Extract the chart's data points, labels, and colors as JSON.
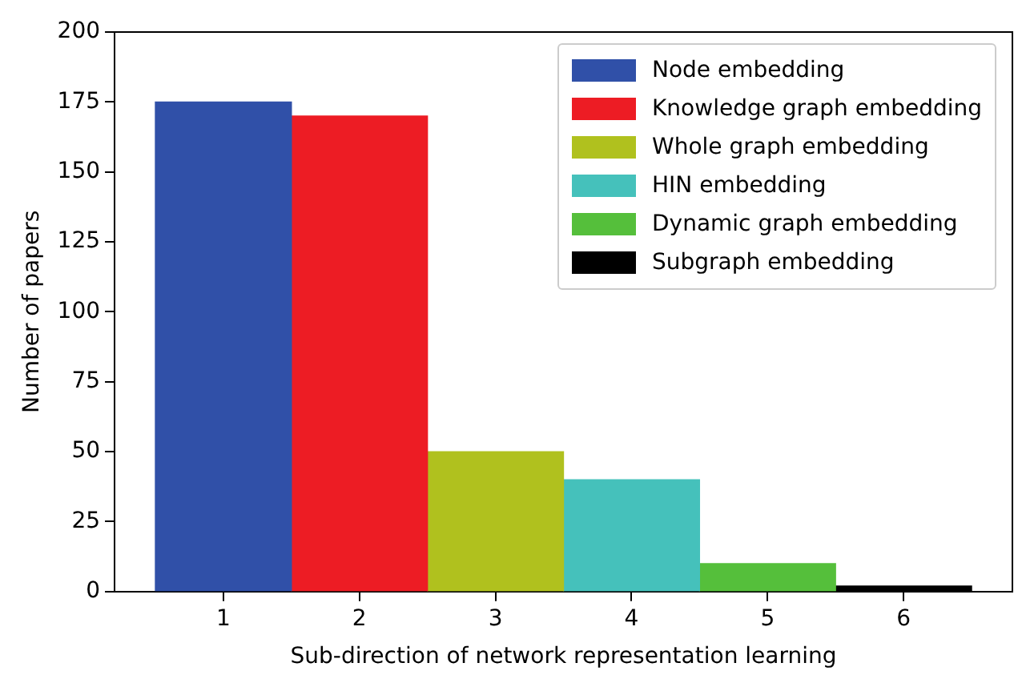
{
  "chart_data": {
    "type": "bar",
    "xlabel": "Sub-direction of network representation learning",
    "ylabel": "Number of papers",
    "xlim": [
      0.2,
      6.8
    ],
    "xticks": [
      1,
      2,
      3,
      4,
      5,
      6
    ],
    "ylim": [
      0,
      200
    ],
    "yticks": [
      0,
      25,
      50,
      75,
      100,
      125,
      150,
      175,
      200
    ],
    "grid": false,
    "legend": "top right",
    "series": [
      {
        "name": "Node embedding",
        "color": "#3050a8",
        "x": [
          1
        ],
        "values": [
          175
        ]
      },
      {
        "name": "Knowledge graph embedding",
        "color": "#ed1c24",
        "x": [
          2
        ],
        "values": [
          170
        ]
      },
      {
        "name": "Whole graph embedding",
        "color": "#b0c11e",
        "x": [
          3
        ],
        "values": [
          50
        ]
      },
      {
        "name": "HIN embedding",
        "color": "#45c1bb",
        "x": [
          4
        ],
        "values": [
          40
        ]
      },
      {
        "name": "Dynamic graph embedding",
        "color": "#55bf3b",
        "x": [
          5
        ],
        "values": [
          10
        ]
      },
      {
        "name": "Subgraph embedding",
        "color": "#000000",
        "x": [
          6
        ],
        "values": [
          2
        ]
      }
    ]
  }
}
